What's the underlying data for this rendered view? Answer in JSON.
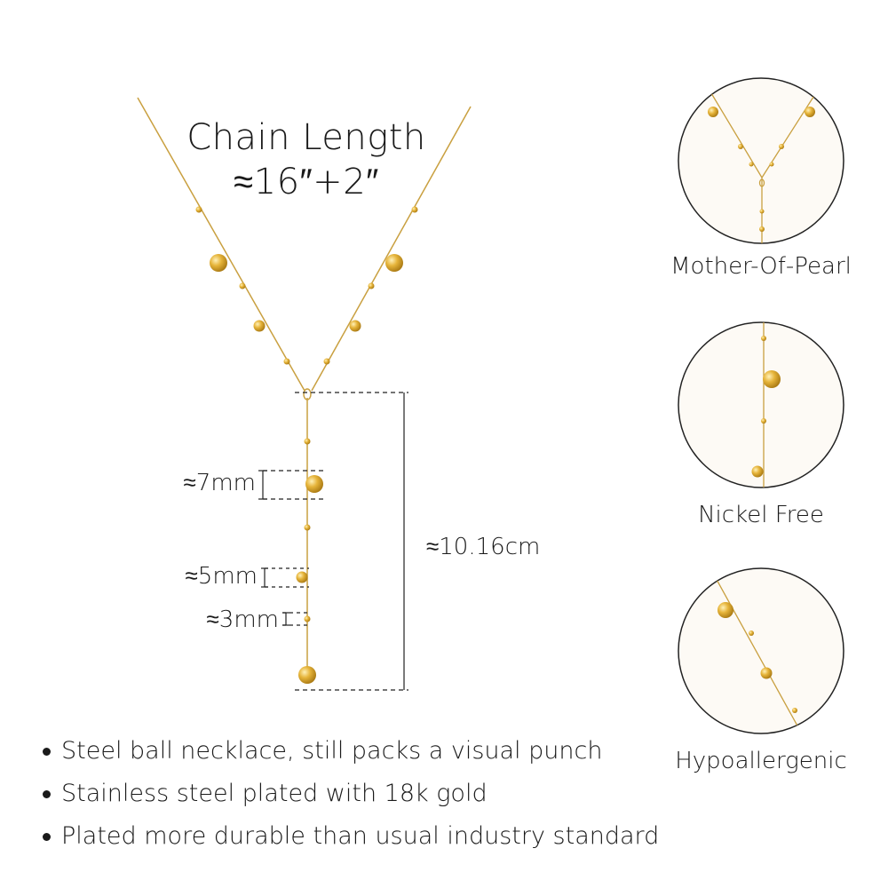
{
  "heading": {
    "line1": "Chain Length",
    "line2": "≈16″+2″"
  },
  "dimensions": {
    "d7": "≈7mm",
    "d5": "≈5mm",
    "d3": "≈3mm",
    "drop": "≈10.16cm"
  },
  "features": [
    {
      "label": "Mother-Of-Pearl"
    },
    {
      "label": "Nickel Free"
    },
    {
      "label": "Hypoallergenic"
    }
  ],
  "bullets": [
    "Steel ball necklace, still packs a visual punch",
    "Stainless steel plated with 18k gold",
    "Plated more durable than usual industry standard"
  ],
  "colors": {
    "gold": "#d9a520",
    "gold_light": "#f5d77a",
    "chain": "#c9a040",
    "circle_fill": "#fdfaf5",
    "line": "#222222"
  }
}
